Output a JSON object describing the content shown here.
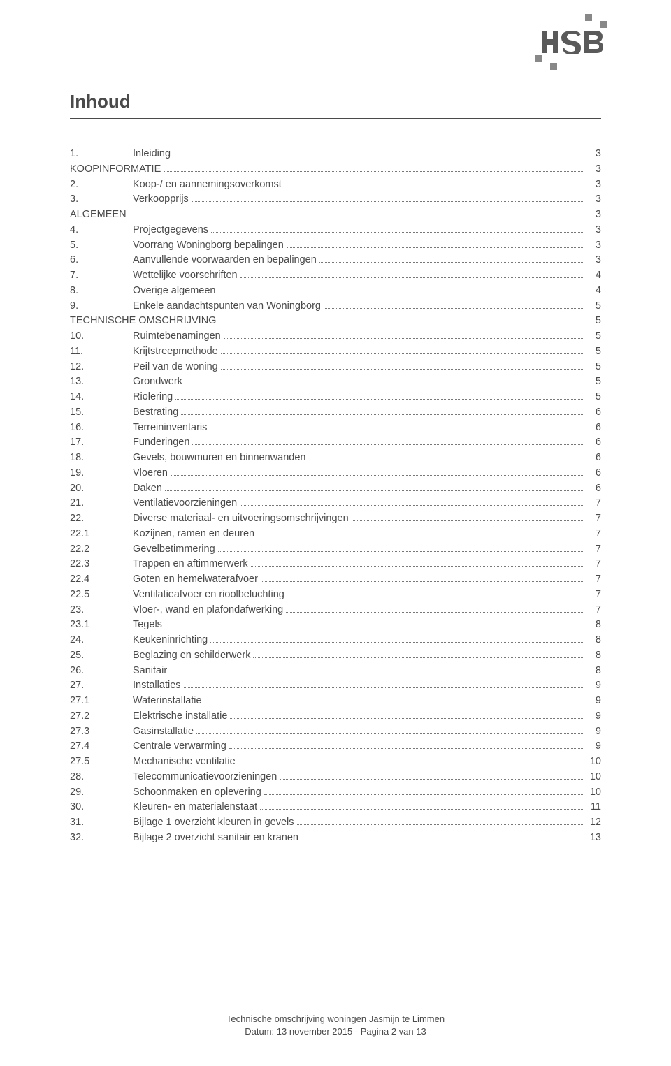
{
  "logo": {
    "text": "HSB",
    "accent_color": "#888888"
  },
  "title": "Inhoud",
  "toc": [
    {
      "num": "1.",
      "label": "Inleiding",
      "page": "3"
    },
    {
      "num": "",
      "label": "KOOPINFORMATIE",
      "page": "3",
      "section": true
    },
    {
      "num": "2.",
      "label": "Koop-/ en aannemingsoverkomst",
      "page": "3"
    },
    {
      "num": "3.",
      "label": "Verkoopprijs",
      "page": "3"
    },
    {
      "num": "",
      "label": "ALGEMEEN",
      "page": "3",
      "section": true
    },
    {
      "num": "4.",
      "label": "Projectgegevens",
      "page": "3"
    },
    {
      "num": "5.",
      "label": "Voorrang Woningborg bepalingen",
      "page": "3"
    },
    {
      "num": "6.",
      "label": "Aanvullende voorwaarden en bepalingen",
      "page": "3"
    },
    {
      "num": "7.",
      "label": "Wettelijke voorschriften",
      "page": "4"
    },
    {
      "num": "8.",
      "label": "Overige algemeen",
      "page": "4"
    },
    {
      "num": "9.",
      "label": "Enkele aandachtspunten van Woningborg",
      "page": "5"
    },
    {
      "num": "",
      "label": "TECHNISCHE OMSCHRIJVING",
      "page": "5",
      "section": true
    },
    {
      "num": "10.",
      "label": "Ruimtebenamingen",
      "page": "5"
    },
    {
      "num": "11.",
      "label": "Krijtstreepmethode",
      "page": "5"
    },
    {
      "num": "12.",
      "label": "Peil van de woning",
      "page": "5"
    },
    {
      "num": "13.",
      "label": "Grondwerk",
      "page": "5"
    },
    {
      "num": "14.",
      "label": "Riolering",
      "page": "5"
    },
    {
      "num": "15.",
      "label": "Bestrating",
      "page": "6"
    },
    {
      "num": "16.",
      "label": "Terreininventaris",
      "page": "6"
    },
    {
      "num": "17.",
      "label": "Funderingen",
      "page": "6"
    },
    {
      "num": "18.",
      "label": "Gevels, bouwmuren en binnenwanden",
      "page": "6"
    },
    {
      "num": "19.",
      "label": "Vloeren",
      "page": "6"
    },
    {
      "num": "20.",
      "label": "Daken",
      "page": "6"
    },
    {
      "num": "21.",
      "label": "Ventilatievoorzieningen",
      "page": "7"
    },
    {
      "num": "22.",
      "label": "Diverse materiaal- en uitvoeringsomschrijvingen",
      "page": "7"
    },
    {
      "num": "22.1",
      "label": "Kozijnen, ramen en deuren",
      "page": "7"
    },
    {
      "num": "22.2",
      "label": "Gevelbetimmering",
      "page": "7"
    },
    {
      "num": "22.3",
      "label": "Trappen en aftimmerwerk",
      "page": "7"
    },
    {
      "num": "22.4",
      "label": "Goten en hemelwaterafvoer",
      "page": "7"
    },
    {
      "num": "22.5",
      "label": "Ventilatieafvoer en rioolbeluchting",
      "page": "7"
    },
    {
      "num": "23.",
      "label": "Vloer-, wand en plafondafwerking",
      "page": "7"
    },
    {
      "num": "23.1",
      "label": "Tegels",
      "page": "8"
    },
    {
      "num": "24.",
      "label": "Keukeninrichting",
      "page": "8"
    },
    {
      "num": "25.",
      "label": "Beglazing en schilderwerk",
      "page": "8"
    },
    {
      "num": "26.",
      "label": "Sanitair",
      "page": "8"
    },
    {
      "num": "27.",
      "label": "Installaties",
      "page": "9"
    },
    {
      "num": "27.1",
      "label": "Waterinstallatie",
      "page": "9"
    },
    {
      "num": "27.2",
      "label": "Elektrische installatie",
      "page": "9"
    },
    {
      "num": "27.3",
      "label": "Gasinstallatie",
      "page": "9"
    },
    {
      "num": "27.4",
      "label": "Centrale verwarming",
      "page": "9"
    },
    {
      "num": "27.5",
      "label": "Mechanische ventilatie",
      "page": "10"
    },
    {
      "num": "28.",
      "label": "Telecommunicatievoorzieningen",
      "page": "10"
    },
    {
      "num": "29.",
      "label": "Schoonmaken en oplevering",
      "page": "10"
    },
    {
      "num": "30.",
      "label": "Kleuren- en materialenstaat",
      "page": "11"
    },
    {
      "num": "31.",
      "label": "Bijlage 1 overzicht kleuren in gevels",
      "page": "12"
    },
    {
      "num": "32.",
      "label": "Bijlage 2 overzicht sanitair en kranen",
      "page": "13"
    }
  ],
  "footer": {
    "line1": "Technische omschrijving woningen Jasmijn te Limmen",
    "line2": "Datum: 13 november 2015 - Pagina 2 van 13"
  }
}
